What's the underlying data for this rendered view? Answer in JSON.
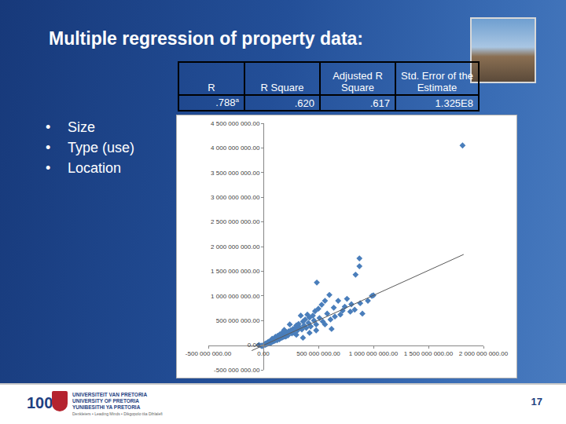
{
  "slide": {
    "title": "Multiple regression of property data:",
    "table": {
      "header": [
        "R",
        "R Square",
        "Adjusted R Square",
        "Std. Error of the Estimate"
      ],
      "rows": [
        [
          {
            "text": ".788",
            "superscript": "a"
          },
          {
            "text": ".620"
          },
          {
            "text": ".617"
          },
          {
            "text": "1.325E8"
          }
        ]
      ]
    },
    "bullets": [
      "Size",
      "Type (use)",
      "Location"
    ],
    "footer": {
      "logo_number": "100",
      "university": [
        "UNIVERSITEIT VAN PRETORIA",
        "UNIVERSITY OF PRETORIA",
        "YUNIBESITHI YA PRETORIA"
      ],
      "motto": "Denkleiers • Leading Minds • Dikgopolo tša Dihlalefi",
      "page": "17"
    }
  },
  "chart_data": {
    "type": "scatter",
    "grid": false,
    "xlim": [
      -500000000.0,
      2000000000.0
    ],
    "ylim": [
      -500000000.0,
      4500000000.0
    ],
    "xticks": [
      {
        "value": -500000000.0,
        "label": "-500 000 000.00"
      },
      {
        "value": 0,
        "label": "0.00"
      },
      {
        "value": 500000000.0,
        "label": "500 000 000.00"
      },
      {
        "value": 1000000000.0,
        "label": "1 000 000 000.00"
      },
      {
        "value": 1500000000.0,
        "label": "1 500 000 000.00"
      },
      {
        "value": 2000000000.0,
        "label": "2 000 000 000.00"
      }
    ],
    "yticks": [
      {
        "value": -500000000.0,
        "label": "-500 000 000.00"
      },
      {
        "value": 0,
        "label": "0.00"
      },
      {
        "value": 500000000.0,
        "label": "500 000 000.00"
      },
      {
        "value": 1000000000.0,
        "label": "1 000 000 000.00"
      },
      {
        "value": 1500000000.0,
        "label": "1 500 000 000.00"
      },
      {
        "value": 2000000000.0,
        "label": "2 000 000 000.00"
      },
      {
        "value": 2500000000.0,
        "label": "2 500 000 000.00"
      },
      {
        "value": 3000000000.0,
        "label": "3 000 000 000.00"
      },
      {
        "value": 3500000000.0,
        "label": "3 500 000 000.00"
      },
      {
        "value": 4000000000.0,
        "label": "4 000 000 000.00"
      },
      {
        "value": 4500000000.0,
        "label": "4 500 000 000.00"
      }
    ],
    "series": [
      {
        "type": "scatter",
        "marker": "diamond",
        "color": "#4a7ebb",
        "x": [
          1810000000.0,
          873000000.0,
          873000000.0,
          486000000.0,
          838000000.0,
          986000000.0,
          600000000.0,
          800000000.0,
          760000000.0,
          720000000.0,
          640000000.0,
          560000000.0,
          530000000.0,
          500000000.0,
          470000000.0,
          450000000.0,
          420000000.0,
          400000000.0,
          380000000.0,
          360000000.0,
          340000000.0,
          320000000.0,
          300000000.0,
          290000000.0,
          270000000.0,
          250000000.0,
          240000000.0,
          230000000.0,
          210000000.0,
          200000000.0,
          190000000.0,
          180000000.0,
          170000000.0,
          160000000.0,
          150000000.0,
          140000000.0,
          130000000.0,
          120000000.0,
          110000000.0,
          100000000.0,
          90000000.0,
          80000000.0,
          70000000.0,
          60000000.0,
          50000000.0,
          40000000.0,
          30000000.0,
          20000000.0,
          10000000.0,
          5000000.0,
          15000000.0,
          25000000.0,
          35000000.0,
          45000000.0,
          55000000.0,
          65000000.0,
          75000000.0,
          85000000.0,
          95000000.0,
          105000000.0,
          115000000.0,
          125000000.0,
          135000000.0,
          145000000.0,
          155000000.0,
          165000000.0,
          175000000.0,
          185000000.0,
          195000000.0,
          205000000.0,
          215000000.0,
          225000000.0,
          260000000.0,
          280000000.0,
          310000000.0,
          330000000.0,
          350000000.0,
          370000000.0,
          390000000.0,
          410000000.0,
          430000000.0,
          460000000.0,
          480000000.0,
          510000000.0,
          540000000.0,
          580000000.0,
          610000000.0,
          650000000.0,
          680000000.0,
          700000000.0,
          740000000.0,
          790000000.0,
          830000000.0,
          880000000.0,
          900000000.0,
          950000000.0,
          1000000000.0,
          620000000.0,
          560000000.0,
          480000000.0,
          420000000.0,
          360000000.0,
          300000000.0,
          -20000000.0,
          -40000000.0,
          -10000000.0
        ],
        "values": [
          4050000000.0,
          1760000000.0,
          1600000000.0,
          1270000000.0,
          1430000000.0,
          1000000000.0,
          1020000000.0,
          830000000.0,
          940000000.0,
          700000000.0,
          760000000.0,
          900000000.0,
          820000000.0,
          740000000.0,
          690000000.0,
          600000000.0,
          560000000.0,
          620000000.0,
          520000000.0,
          480000000.0,
          600000000.0,
          430000000.0,
          400000000.0,
          350000000.0,
          330000000.0,
          300000000.0,
          420000000.0,
          280000000.0,
          260000000.0,
          230000000.0,
          310000000.0,
          200000000.0,
          250000000.0,
          180000000.0,
          220000000.0,
          160000000.0,
          190000000.0,
          140000000.0,
          170000000.0,
          120000000.0,
          100000000.0,
          130000000.0,
          90000000.0,
          80000000.0,
          70000000.0,
          60000000.0,
          40000000.0,
          30000000.0,
          20000000.0,
          10000000.0,
          5000000.0,
          15000000.0,
          25000000.0,
          35000000.0,
          50000000.0,
          45000000.0,
          60000000.0,
          70000000.0,
          85000000.0,
          90000000.0,
          110000000.0,
          100000000.0,
          130000000.0,
          120000000.0,
          140000000.0,
          150000000.0,
          160000000.0,
          170000000.0,
          180000000.0,
          175000000.0,
          210000000.0,
          200000000.0,
          240000000.0,
          250000000.0,
          300000000.0,
          360000000.0,
          320000000.0,
          400000000.0,
          350000000.0,
          450000000.0,
          380000000.0,
          500000000.0,
          420000000.0,
          550000000.0,
          480000000.0,
          640000000.0,
          520000000.0,
          580000000.0,
          900000000.0,
          620000000.0,
          780000000.0,
          680000000.0,
          720000000.0,
          850000000.0,
          640000000.0,
          900000000.0,
          1010000000.0,
          330000000.0,
          420000000.0,
          300000000.0,
          250000000.0,
          150000000.0,
          210000000.0,
          -10000000.0,
          5000000.0,
          -20000000.0
        ]
      },
      {
        "type": "line",
        "line_style": "solid",
        "color": "#595959",
        "x": [
          -106000000.0,
          1820000000.0
        ],
        "values": [
          -111000000.0,
          1840000000.0
        ]
      }
    ]
  }
}
